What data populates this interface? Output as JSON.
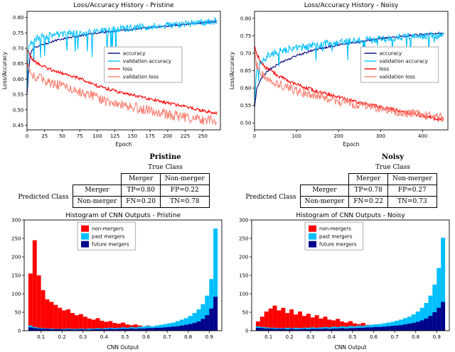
{
  "chart_data": [
    {
      "type": "line",
      "title": "Loss/Accuracy History - Pristine",
      "xlabel": "Epoch",
      "ylabel": "Loss/Accuracy",
      "xlim": [
        0,
        275
      ],
      "ylim": [
        0.435,
        0.82
      ],
      "xticks": [
        0,
        25,
        50,
        75,
        100,
        125,
        150,
        175,
        200,
        225,
        250
      ],
      "yticks": [
        0.45,
        0.5,
        0.55,
        0.6,
        0.65,
        0.7,
        0.75,
        0.8
      ],
      "xtick_fmt": 0,
      "ytick_fmt": 2,
      "grid": false,
      "legend": {
        "pos": [
          0.4,
          0.3
        ]
      },
      "series": [
        {
          "name": "accuracy",
          "color": "#000080",
          "jitter": 0.003,
          "keypoints": [
            [
              0,
              0.545
            ],
            [
              2,
              0.62
            ],
            [
              5,
              0.685
            ],
            [
              10,
              0.7
            ],
            [
              20,
              0.71
            ],
            [
              40,
              0.725
            ],
            [
              60,
              0.735
            ],
            [
              80,
              0.742
            ],
            [
              100,
              0.75
            ],
            [
              130,
              0.757
            ],
            [
              160,
              0.764
            ],
            [
              190,
              0.771
            ],
            [
              220,
              0.777
            ],
            [
              250,
              0.783
            ],
            [
              270,
              0.787
            ]
          ]
        },
        {
          "name": "validation accuracy",
          "color": "#00BFFF",
          "jitter": 0.011,
          "spike": 0.09,
          "spike_until": 140,
          "keypoints": [
            [
              0,
              0.555
            ],
            [
              2,
              0.69
            ],
            [
              5,
              0.72
            ],
            [
              10,
              0.73
            ],
            [
              20,
              0.737
            ],
            [
              40,
              0.744
            ],
            [
              60,
              0.748
            ],
            [
              80,
              0.752
            ],
            [
              100,
              0.756
            ],
            [
              130,
              0.762
            ],
            [
              160,
              0.768
            ],
            [
              190,
              0.773
            ],
            [
              220,
              0.778
            ],
            [
              250,
              0.784
            ],
            [
              270,
              0.79
            ]
          ]
        },
        {
          "name": "loss",
          "color": "#FF0000",
          "jitter": 0.005,
          "keypoints": [
            [
              0,
              0.695
            ],
            [
              2,
              0.69
            ],
            [
              5,
              0.672
            ],
            [
              10,
              0.658
            ],
            [
              20,
              0.645
            ],
            [
              40,
              0.625
            ],
            [
              60,
              0.612
            ],
            [
              80,
              0.598
            ],
            [
              100,
              0.578
            ],
            [
              130,
              0.558
            ],
            [
              160,
              0.543
            ],
            [
              190,
              0.527
            ],
            [
              220,
              0.513
            ],
            [
              250,
              0.497
            ],
            [
              270,
              0.49
            ]
          ]
        },
        {
          "name": "validation loss",
          "color": "#FA8072",
          "jitter": 0.017,
          "keypoints": [
            [
              0,
              0.66
            ],
            [
              2,
              0.64
            ],
            [
              5,
              0.625
            ],
            [
              10,
              0.612
            ],
            [
              20,
              0.6
            ],
            [
              40,
              0.585
            ],
            [
              60,
              0.572
            ],
            [
              80,
              0.556
            ],
            [
              100,
              0.538
            ],
            [
              130,
              0.52
            ],
            [
              160,
              0.505
            ],
            [
              190,
              0.49
            ],
            [
              220,
              0.478
            ],
            [
              250,
              0.468
            ],
            [
              270,
              0.462
            ]
          ]
        }
      ]
    },
    {
      "type": "line",
      "title": "Loss/Accuracy History - Noisy",
      "xlabel": "Epoch",
      "ylabel": "Loss/Accuracy",
      "xlim": [
        0,
        460
      ],
      "ylim": [
        0.48,
        0.82
      ],
      "xticks": [
        0,
        100,
        200,
        300,
        400
      ],
      "yticks": [
        0.5,
        0.55,
        0.6,
        0.65,
        0.7,
        0.75,
        0.8
      ],
      "xtick_fmt": 0,
      "ytick_fmt": 2,
      "grid": false,
      "legend": {
        "pos": [
          0.55,
          0.3
        ]
      },
      "series": [
        {
          "name": "accuracy",
          "color": "#000080",
          "jitter": 0.003,
          "keypoints": [
            [
              0,
              0.545
            ],
            [
              5,
              0.595
            ],
            [
              15,
              0.625
            ],
            [
              30,
              0.648
            ],
            [
              60,
              0.672
            ],
            [
              100,
              0.693
            ],
            [
              150,
              0.712
            ],
            [
              200,
              0.724
            ],
            [
              250,
              0.733
            ],
            [
              300,
              0.742
            ],
            [
              350,
              0.748
            ],
            [
              400,
              0.754
            ],
            [
              450,
              0.758
            ]
          ]
        },
        {
          "name": "validation accuracy",
          "color": "#00BFFF",
          "jitter": 0.011,
          "spike": 0.045,
          "spike_until": 460,
          "keypoints": [
            [
              0,
              0.555
            ],
            [
              5,
              0.645
            ],
            [
              15,
              0.675
            ],
            [
              30,
              0.692
            ],
            [
              60,
              0.705
            ],
            [
              100,
              0.715
            ],
            [
              150,
              0.724
            ],
            [
              200,
              0.73
            ],
            [
              250,
              0.736
            ],
            [
              300,
              0.741
            ],
            [
              350,
              0.746
            ],
            [
              400,
              0.75
            ],
            [
              450,
              0.752
            ]
          ]
        },
        {
          "name": "loss",
          "color": "#FF0000",
          "jitter": 0.005,
          "keypoints": [
            [
              0,
              0.725
            ],
            [
              5,
              0.7
            ],
            [
              15,
              0.675
            ],
            [
              30,
              0.655
            ],
            [
              60,
              0.632
            ],
            [
              100,
              0.61
            ],
            [
              150,
              0.59
            ],
            [
              200,
              0.573
            ],
            [
              250,
              0.558
            ],
            [
              300,
              0.545
            ],
            [
              350,
              0.533
            ],
            [
              400,
              0.52
            ],
            [
              450,
              0.507
            ]
          ]
        },
        {
          "name": "validation loss",
          "color": "#FA8072",
          "jitter": 0.013,
          "keypoints": [
            [
              0,
              0.705
            ],
            [
              5,
              0.665
            ],
            [
              15,
              0.645
            ],
            [
              30,
              0.628
            ],
            [
              60,
              0.61
            ],
            [
              100,
              0.592
            ],
            [
              150,
              0.575
            ],
            [
              200,
              0.562
            ],
            [
              250,
              0.55
            ],
            [
              300,
              0.54
            ],
            [
              350,
              0.53
            ],
            [
              400,
              0.522
            ],
            [
              450,
              0.515
            ]
          ]
        }
      ]
    },
    {
      "type": "table",
      "title": "Pristine",
      "col_group": "True Class",
      "row_group": "Predicted Class",
      "col_headers": [
        "Merger",
        "Non-merger"
      ],
      "row_headers": [
        "Merger",
        "Non-merger"
      ],
      "cells": [
        [
          "TP=0.80",
          "FP=0.22"
        ],
        [
          "FN=0.20",
          "TN=0.78"
        ]
      ]
    },
    {
      "type": "table",
      "title": "Noisy",
      "col_group": "True Class",
      "row_group": "Predicted Class",
      "col_headers": [
        "Merger",
        "Non-merger"
      ],
      "row_headers": [
        "Merger",
        "Non-merger"
      ],
      "cells": [
        [
          "TP=0.78",
          "FP=0.27"
        ],
        [
          "FN=0.22",
          "TN=0.73"
        ]
      ]
    },
    {
      "type": "histogram",
      "title": "Histogram of CNN Outputs - Pristine",
      "xlabel": "CNN Output",
      "bin_start": 0.04,
      "bin_width": 0.02,
      "xlim": [
        0.02,
        0.96
      ],
      "ylim": [
        0,
        300
      ],
      "xticks": [
        0.1,
        0.2,
        0.3,
        0.4,
        0.5,
        0.6,
        0.7,
        0.8,
        0.9
      ],
      "yticks": [
        0,
        50,
        100,
        150,
        200,
        250,
        300
      ],
      "xtick_fmt": 1,
      "ytick_fmt": 0,
      "legend": {
        "pos": [
          0.27,
          0.02
        ]
      },
      "series": [
        {
          "name": "non-mergers",
          "color": "#FF0000",
          "values": [
            155,
            245,
            150,
            110,
            85,
            78,
            70,
            62,
            55,
            58,
            48,
            42,
            45,
            38,
            33,
            30,
            34,
            27,
            24,
            26,
            21,
            19,
            22,
            17,
            15,
            17,
            14,
            12,
            14,
            11,
            10,
            12,
            9,
            9,
            10,
            8,
            8,
            9,
            7,
            7,
            8,
            6,
            7,
            6,
            6
          ]
        },
        {
          "name": "past mergers",
          "color": "#00BFFF",
          "values": [
            14,
            10,
            8,
            7,
            6,
            6,
            5,
            5,
            5,
            6,
            5,
            5,
            6,
            5,
            6,
            6,
            7,
            6,
            7,
            8,
            7,
            8,
            9,
            8,
            10,
            9,
            11,
            12,
            13,
            12,
            14,
            16,
            18,
            20,
            22,
            26,
            30,
            34,
            40,
            48,
            58,
            72,
            95,
            140,
            277
          ]
        },
        {
          "name": "future mergers",
          "color": "#00008B",
          "values": [
            9,
            7,
            6,
            5,
            5,
            4,
            4,
            4,
            3,
            4,
            3,
            3,
            4,
            3,
            3,
            4,
            4,
            4,
            4,
            5,
            4,
            5,
            5,
            5,
            6,
            5,
            6,
            6,
            7,
            7,
            8,
            8,
            9,
            10,
            11,
            12,
            14,
            16,
            18,
            21,
            25,
            32,
            42,
            60,
            92
          ]
        }
      ]
    },
    {
      "type": "histogram",
      "title": "Histogram of CNN Outputs - Noisy",
      "xlabel": "CNN Output",
      "bin_start": 0.04,
      "bin_width": 0.02,
      "xlim": [
        0.02,
        0.96
      ],
      "ylim": [
        0,
        300
      ],
      "xticks": [
        0.1,
        0.2,
        0.3,
        0.4,
        0.5,
        0.6,
        0.7,
        0.8,
        0.9
      ],
      "yticks": [
        0,
        50,
        100,
        150,
        200,
        250,
        300
      ],
      "xtick_fmt": 1,
      "ytick_fmt": 0,
      "legend": {
        "pos": [
          0.27,
          0.02
        ]
      },
      "series": [
        {
          "name": "non-mergers",
          "color": "#FF0000",
          "values": [
            25,
            38,
            52,
            60,
            68,
            55,
            62,
            48,
            58,
            44,
            52,
            40,
            46,
            36,
            42,
            33,
            38,
            30,
            28,
            32,
            25,
            22,
            26,
            20,
            18,
            21,
            16,
            15,
            17,
            13,
            12,
            14,
            11,
            10,
            12,
            9,
            9,
            10,
            8,
            8,
            9,
            7,
            7,
            8,
            7
          ]
        },
        {
          "name": "past mergers",
          "color": "#00BFFF",
          "values": [
            12,
            10,
            9,
            8,
            8,
            7,
            7,
            8,
            7,
            8,
            7,
            8,
            8,
            9,
            8,
            9,
            10,
            9,
            11,
            10,
            12,
            11,
            13,
            12,
            14,
            13,
            15,
            16,
            17,
            18,
            20,
            22,
            24,
            27,
            30,
            34,
            38,
            44,
            52,
            62,
            75,
            95,
            125,
            170,
            252
          ]
        },
        {
          "name": "future mergers",
          "color": "#00008B",
          "values": [
            8,
            7,
            6,
            6,
            5,
            5,
            5,
            4,
            5,
            4,
            4,
            5,
            4,
            5,
            5,
            5,
            6,
            5,
            6,
            6,
            7,
            6,
            7,
            7,
            8,
            8,
            9,
            9,
            10,
            10,
            11,
            12,
            13,
            14,
            15,
            17,
            19,
            21,
            24,
            28,
            33,
            40,
            50,
            62,
            78
          ]
        }
      ]
    }
  ]
}
